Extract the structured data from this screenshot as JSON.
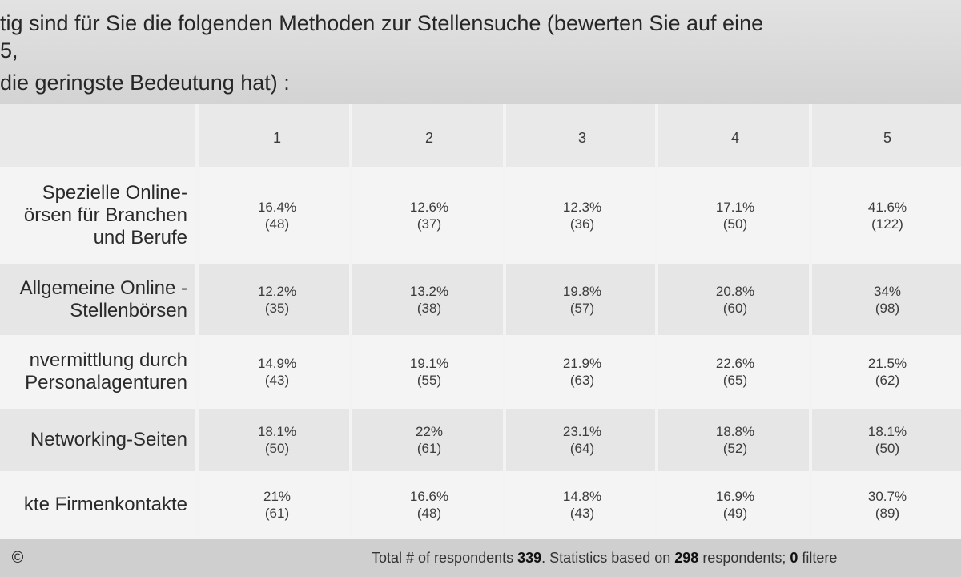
{
  "question": {
    "line1": "tig sind für Sie die folgenden Methoden zur Stellensuche (bewerten Sie auf eine",
    "line2": "5,",
    "line3": "die geringste Bedeutung hat) :"
  },
  "columns": [
    "1",
    "2",
    "3",
    "4",
    "5"
  ],
  "rows": [
    {
      "label": [
        "Spezielle Online-",
        "örsen für Branchen",
        "und Berufe"
      ],
      "cells": [
        {
          "pct": "16.4%",
          "count": "(48)"
        },
        {
          "pct": "12.6%",
          "count": "(37)"
        },
        {
          "pct": "12.3%",
          "count": "(36)"
        },
        {
          "pct": "17.1%",
          "count": "(50)"
        },
        {
          "pct": "41.6%",
          "count": "(122)"
        }
      ]
    },
    {
      "label": [
        "Allgemeine Online -",
        "Stellenbörsen"
      ],
      "cells": [
        {
          "pct": "12.2%",
          "count": "(35)"
        },
        {
          "pct": "13.2%",
          "count": "(38)"
        },
        {
          "pct": "19.8%",
          "count": "(57)"
        },
        {
          "pct": "20.8%",
          "count": "(60)"
        },
        {
          "pct": "34%",
          "count": "(98)"
        }
      ]
    },
    {
      "label": [
        "nvermittlung durch",
        "Personalagenturen"
      ],
      "cells": [
        {
          "pct": "14.9%",
          "count": "(43)"
        },
        {
          "pct": "19.1%",
          "count": "(55)"
        },
        {
          "pct": "21.9%",
          "count": "(63)"
        },
        {
          "pct": "22.6%",
          "count": "(65)"
        },
        {
          "pct": "21.5%",
          "count": "(62)"
        }
      ]
    },
    {
      "label": [
        "Networking-Seiten"
      ],
      "cells": [
        {
          "pct": "18.1%",
          "count": "(50)"
        },
        {
          "pct": "22%",
          "count": "(61)"
        },
        {
          "pct": "23.1%",
          "count": "(64)"
        },
        {
          "pct": "18.8%",
          "count": "(52)"
        },
        {
          "pct": "18.1%",
          "count": "(50)"
        }
      ]
    },
    {
      "label": [
        "kte Firmenkontakte"
      ],
      "cells": [
        {
          "pct": "21%",
          "count": "(61)"
        },
        {
          "pct": "16.6%",
          "count": "(48)"
        },
        {
          "pct": "14.8%",
          "count": "(43)"
        },
        {
          "pct": "16.9%",
          "count": "(49)"
        },
        {
          "pct": "30.7%",
          "count": "(89)"
        }
      ]
    }
  ],
  "footer": {
    "copyright": "©",
    "prefix": "Total # of respondents ",
    "total": "339",
    "middle": ". Statistics based on ",
    "based": "298",
    "middle2": " respondents; ",
    "filtered": "0",
    "suffix": " filtere"
  }
}
